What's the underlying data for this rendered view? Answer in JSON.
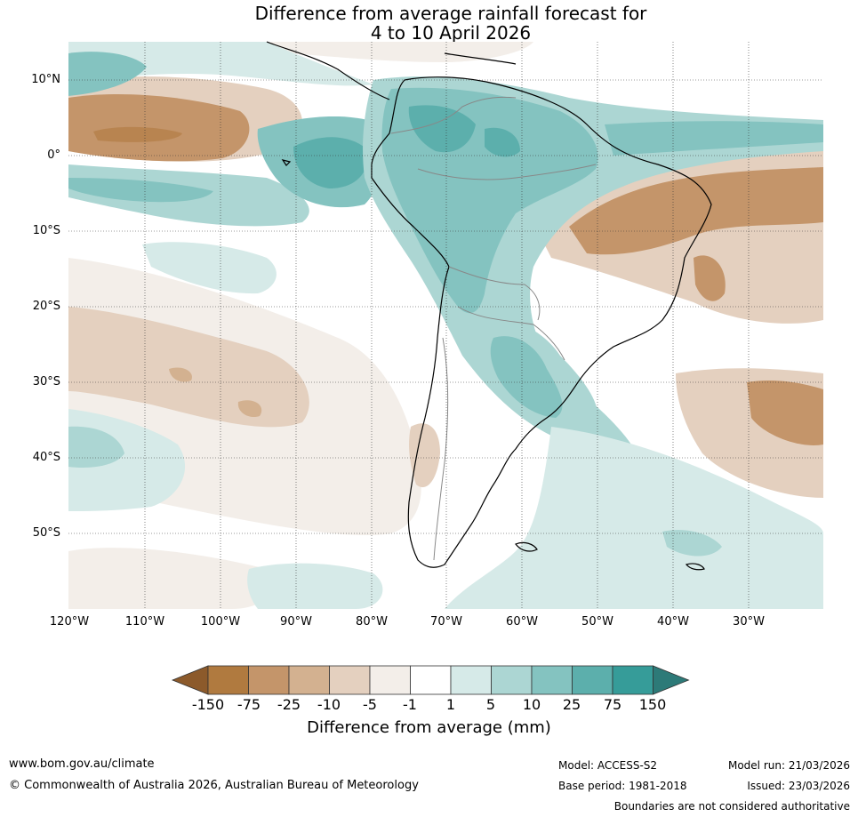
{
  "title": {
    "line1": "Difference from average rainfall forecast for",
    "line2": "4 to 10 April 2026"
  },
  "map": {
    "latitude_labels": [
      "10°N",
      "0°",
      "10°S",
      "20°S",
      "30°S",
      "40°S",
      "50°S"
    ],
    "longitude_labels": [
      "120°W",
      "110°W",
      "100°W",
      "90°W",
      "80°W",
      "70°W",
      "60°W",
      "50°W",
      "40°W",
      "30°W"
    ]
  },
  "colorbar": {
    "ticks": [
      "-150",
      "-75",
      "-25",
      "-10",
      "-5",
      "-1",
      "1",
      "5",
      "10",
      "25",
      "75",
      "150"
    ],
    "colors": [
      "#8c5a2b",
      "#b07a3f",
      "#c4956a",
      "#d3b190",
      "#e4d0bf",
      "#f3eee9",
      "#ffffff",
      "#d6eae8",
      "#acd6d3",
      "#84c3c0",
      "#5cafac",
      "#369c99",
      "#2d7a78"
    ],
    "label": "Difference from average (mm)"
  },
  "footer": {
    "url": "www.bom.gov.au/climate",
    "copyright": "© Commonwealth of Australia 2026, Australian Bureau of Meteorology",
    "model": "Model: ACCESS-S2",
    "base_period": "Base period: 1981-2018",
    "model_run": "Model run: 21/03/2026",
    "issued": "Issued: 23/03/2026",
    "boundaries": "Boundaries are not considered authoritative"
  }
}
